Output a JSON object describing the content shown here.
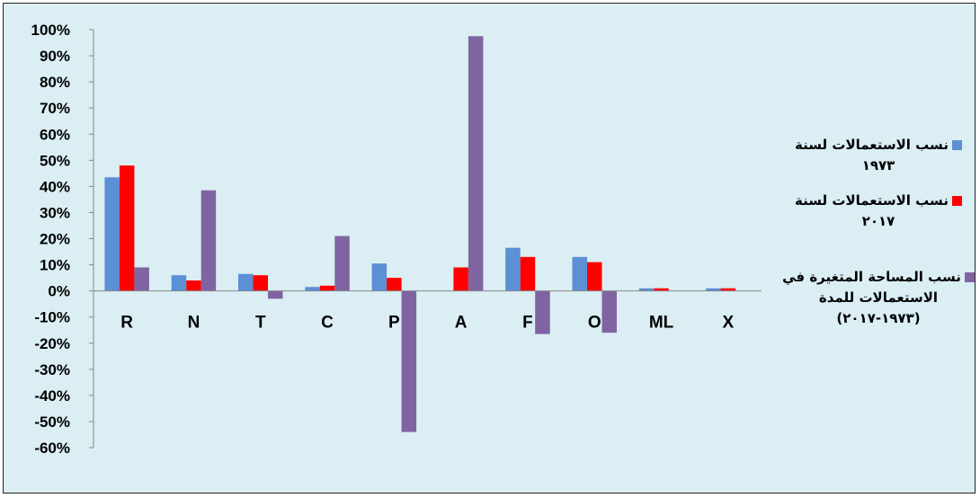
{
  "chart_data": {
    "type": "bar",
    "categories": [
      "R",
      "N",
      "T",
      "C",
      "P",
      "A",
      "F",
      "O",
      "ML",
      "X"
    ],
    "series": [
      {
        "name": "نسب الاستعمالات لسنة ١٩٧٣",
        "color": "#5b8fd6",
        "values": [
          43.5,
          6,
          6.5,
          1.5,
          10.5,
          0,
          16.5,
          13,
          1,
          1
        ]
      },
      {
        "name": "نسب الاستعمالات لسنة ٢٠١٧",
        "color": "#ff0000",
        "values": [
          48,
          4,
          6,
          2,
          5,
          9,
          13,
          11,
          1,
          1
        ]
      },
      {
        "name": "نسب المساحة المتغيرة في الاستعمالات للمدة (١٩٧٣-٢٠١٧)",
        "color": "#8064a2",
        "values": [
          9,
          38.5,
          -3,
          21,
          -54,
          97.5,
          -16.5,
          -16,
          0,
          0
        ]
      }
    ],
    "ylim": [
      -60,
      100
    ],
    "yticks": [
      "100%",
      "90%",
      "80%",
      "70%",
      "60%",
      "50%",
      "40%",
      "30%",
      "20%",
      "10%",
      "0%",
      "-10%",
      "-20%",
      "-30%",
      "-40%",
      "-50%",
      "-60%"
    ],
    "grid": false,
    "legend_position": "right"
  },
  "legend": {
    "item1": "نسب الاستعمالات لسنة ١٩٧٣",
    "item2": "نسب الاستعمالات لسنة ٢٠١٧",
    "item3": "نسب المساحة المتغيرة في الاستعمالات للمدة (١٩٧٣-٢٠١٧)"
  }
}
